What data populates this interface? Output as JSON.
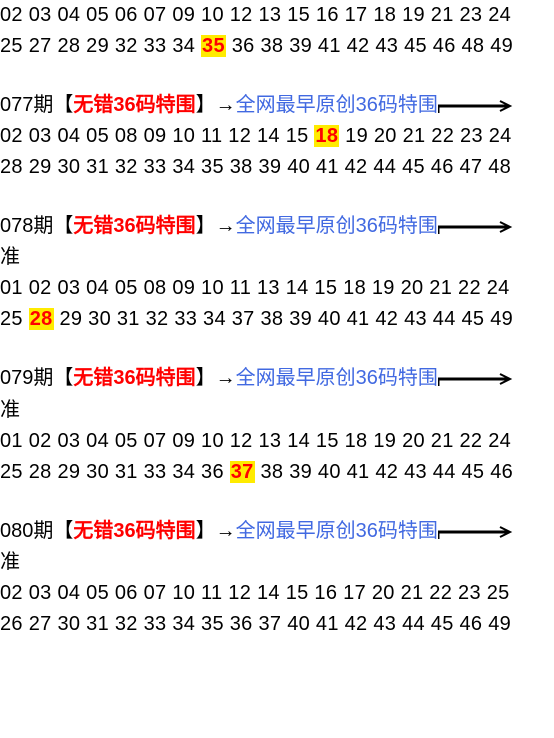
{
  "colors": {
    "text": "#000000",
    "red": "#ff0000",
    "blue": "#4169e1",
    "highlight_bg": "#ffeb00",
    "highlight_fg": "#ff0000",
    "background": "#ffffff"
  },
  "title_template": {
    "bracket_open": "【",
    "bracket_close": "】",
    "red_label": "无错36码特围",
    "arrow": "→",
    "blue_label": "全网最早原创36码特围",
    "zhun": "准"
  },
  "blocks": [
    {
      "issue": "",
      "show_header": false,
      "show_zhun": false,
      "rows": [
        {
          "nums": [
            "02",
            "03",
            "04",
            "05",
            "06",
            "07",
            "09",
            "10",
            "12",
            "13",
            "15",
            "16",
            "17",
            "18",
            "19",
            "21",
            "23",
            "24"
          ],
          "highlight_index": -1
        },
        {
          "nums": [
            "25",
            "27",
            "28",
            "29",
            "32",
            "33",
            "34",
            "35",
            "36",
            "38",
            "39",
            "41",
            "42",
            "43",
            "45",
            "46",
            "48",
            "49"
          ],
          "highlight_index": 7
        }
      ]
    },
    {
      "issue": "077期",
      "show_header": true,
      "show_zhun": false,
      "rows": [
        {
          "nums": [
            "02",
            "03",
            "04",
            "05",
            "08",
            "09",
            "10",
            "11",
            "12",
            "14",
            "15",
            "18",
            "19",
            "20",
            "21",
            "22",
            "23",
            "24"
          ],
          "highlight_index": 11
        },
        {
          "nums": [
            "28",
            "29",
            "30",
            "31",
            "32",
            "33",
            "34",
            "35",
            "38",
            "39",
            "40",
            "41",
            "42",
            "44",
            "45",
            "46",
            "47",
            "48"
          ],
          "highlight_index": -1
        }
      ]
    },
    {
      "issue": "078期",
      "show_header": true,
      "show_zhun": true,
      "rows": [
        {
          "nums": [
            "01",
            "02",
            "03",
            "04",
            "05",
            "08",
            "09",
            "10",
            "11",
            "13",
            "14",
            "15",
            "18",
            "19",
            "20",
            "21",
            "22",
            "24"
          ],
          "highlight_index": -1
        },
        {
          "nums": [
            "25",
            "28",
            "29",
            "30",
            "31",
            "32",
            "33",
            "34",
            "37",
            "38",
            "39",
            "40",
            "41",
            "42",
            "43",
            "44",
            "45",
            "49"
          ],
          "highlight_index": 1
        }
      ]
    },
    {
      "issue": "079期",
      "show_header": true,
      "show_zhun": true,
      "rows": [
        {
          "nums": [
            "01",
            "02",
            "03",
            "04",
            "05",
            "07",
            "09",
            "10",
            "12",
            "13",
            "14",
            "15",
            "18",
            "19",
            "20",
            "21",
            "22",
            "24"
          ],
          "highlight_index": -1
        },
        {
          "nums": [
            "25",
            "28",
            "29",
            "30",
            "31",
            "33",
            "34",
            "36",
            "37",
            "38",
            "39",
            "40",
            "41",
            "42",
            "43",
            "44",
            "45",
            "46"
          ],
          "highlight_index": 8
        }
      ]
    },
    {
      "issue": "080期",
      "show_header": true,
      "show_zhun": true,
      "rows": [
        {
          "nums": [
            "02",
            "03",
            "04",
            "05",
            "06",
            "07",
            "10",
            "11",
            "12",
            "14",
            "15",
            "16",
            "17",
            "20",
            "21",
            "22",
            "23",
            "25"
          ],
          "highlight_index": -1
        },
        {
          "nums": [
            "26",
            "27",
            "30",
            "31",
            "32",
            "33",
            "34",
            "35",
            "36",
            "37",
            "40",
            "41",
            "42",
            "43",
            "44",
            "45",
            "46",
            "49"
          ],
          "highlight_index": -1
        }
      ]
    }
  ]
}
